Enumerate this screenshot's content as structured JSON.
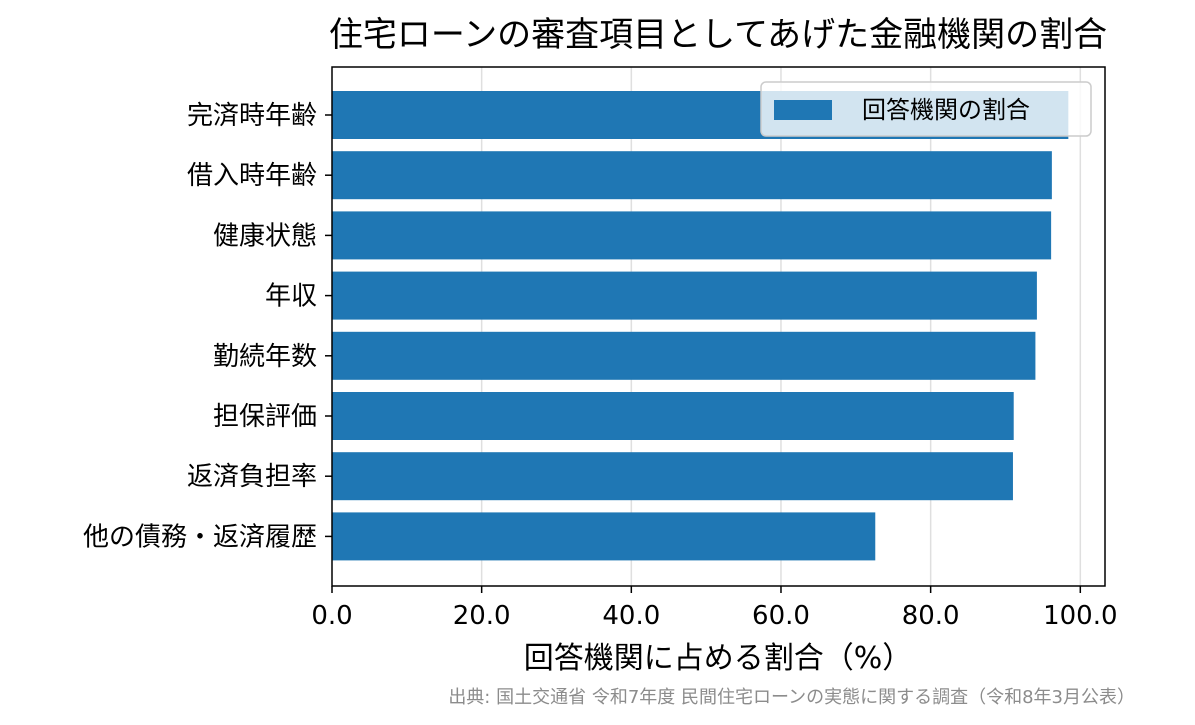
{
  "chart_data": {
    "type": "bar",
    "orientation": "horizontal",
    "title": "住宅ローンの審査項目としてあげた金融機関の割合",
    "xlabel": "回答機関に占める割合（%）",
    "ylabel": "",
    "categories": [
      "完済時年齢",
      "借入時年齢",
      "健康状態",
      "年収",
      "勤続年数",
      "担保評価",
      "返済負担率",
      "他の債務・返済履歴"
    ],
    "series": [
      {
        "name": "回答機関の割合",
        "values": [
          98.4,
          96.2,
          96.1,
          94.2,
          94.0,
          91.1,
          91.0,
          72.6
        ]
      }
    ],
    "xlim": [
      0,
      103.3
    ],
    "xticks": [
      "0.0",
      "20.0",
      "40.0",
      "60.0",
      "80.0",
      "100.0"
    ],
    "grid": "x",
    "legend": "upper right",
    "colors": {
      "bar": "#1f77b4"
    },
    "source": "出典: 国土交通省 令和7年度 民間住宅ローンの実態に関する調査（令和8年3月公表）"
  }
}
